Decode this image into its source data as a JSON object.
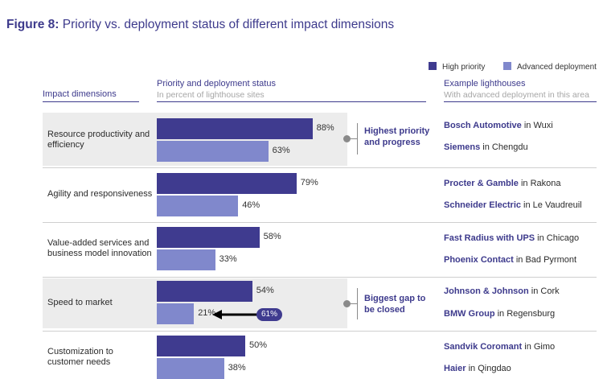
{
  "figure": {
    "label": "Figure 8:",
    "title": "Priority vs. deployment status of different impact dimensions"
  },
  "legend": {
    "high_priority": "High priority",
    "advanced": "Advanced deployment"
  },
  "colors": {
    "high_priority": "#3f3b8f",
    "advanced": "#8088cc",
    "title": "#3d3a8c"
  },
  "headers": {
    "dimensions": "Impact dimensions",
    "status": "Priority and deployment status",
    "status_sub": "In percent of lighthouse sites",
    "lighthouses": "Example lighthouses",
    "lighthouses_sub": "With advanced deployment in this area"
  },
  "rows": {
    "r0": {
      "label": "Resource productivity and efficiency",
      "lh1": {
        "company": "Bosch Automotive",
        "place": " in Wuxi"
      },
      "lh2": {
        "company": "Siemens",
        "place": " in Chengdu"
      }
    },
    "r1": {
      "label": "Agility and responsiveness",
      "lh1": {
        "company": "Procter & Gamble",
        "place": " in Rakona"
      },
      "lh2": {
        "company": "Schneider Electric",
        "place": " in Le Vaudreuil"
      }
    },
    "r2": {
      "label": "Value-added services and business model innovation",
      "lh1": {
        "company": "Fast Radius with UPS",
        "place": " in Chicago"
      },
      "lh2": {
        "company": "Phoenix Contact",
        "place": " in Bad Pyrmont"
      }
    },
    "r3": {
      "label": "Speed to market",
      "lh1": {
        "company": "Johnson & Johnson",
        "place": " in Cork"
      },
      "lh2": {
        "company": "BMW Group",
        "place": " in Regensburg"
      }
    },
    "r4": {
      "label": "Customization to customer needs",
      "lh1": {
        "company": "Sandvik Coromant",
        "place": " in Gimo"
      },
      "lh2": {
        "company": "Haier",
        "place": " in Qingdao"
      }
    }
  },
  "callouts": {
    "top": "Highest priority and progress",
    "gap": "Biggest gap to be closed",
    "gap_value": "61%"
  },
  "chart_data": {
    "type": "bar",
    "orientation": "horizontal",
    "title": "Priority vs. deployment status of different impact dimensions",
    "subtitle": "In percent of lighthouse sites",
    "categories": [
      "Resource productivity and efficiency",
      "Agility and responsiveness",
      "Value-added services and business model innovation",
      "Speed to market",
      "Customization to customer needs"
    ],
    "series": [
      {
        "name": "High priority",
        "values": [
          88,
          79,
          58,
          54,
          50
        ],
        "labels": [
          "88%",
          "79%",
          "58%",
          "54%",
          "50%"
        ]
      },
      {
        "name": "Advanced deployment",
        "values": [
          63,
          46,
          33,
          21,
          38
        ],
        "labels": [
          "63%",
          "46%",
          "33%",
          "21%",
          "38%"
        ]
      }
    ],
    "xlim": [
      0,
      100
    ],
    "annotations": [
      {
        "category": "Speed to market",
        "text": "61%",
        "meaning": "gap between high priority and advanced deployment"
      }
    ],
    "legend_position": "top-right"
  }
}
